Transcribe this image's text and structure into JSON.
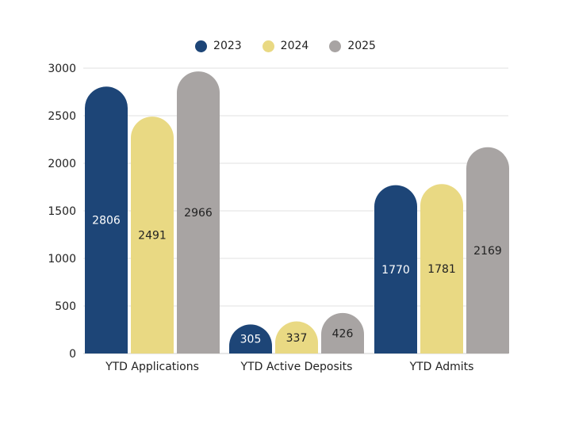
{
  "chart_data": {
    "type": "bar",
    "categories": [
      "YTD Applications",
      "YTD Active Deposits",
      "YTD Admits"
    ],
    "series": [
      {
        "name": "2023",
        "values": [
          2806,
          305,
          1770
        ],
        "color": "#1d4577",
        "label_color": "#ffffff"
      },
      {
        "name": "2024",
        "values": [
          2491,
          337,
          1781
        ],
        "color": "#e9d983",
        "label_color": "#222222"
      },
      {
        "name": "2025",
        "values": [
          2966,
          426,
          2169
        ],
        "color": "#a8a4a3",
        "label_color": "#222222"
      }
    ],
    "ylim": [
      0,
      3000
    ],
    "yticks": [
      0,
      500,
      1000,
      1500,
      2000,
      2500,
      3000
    ],
    "grid": true,
    "legend": "top-center",
    "data_labels": true
  }
}
